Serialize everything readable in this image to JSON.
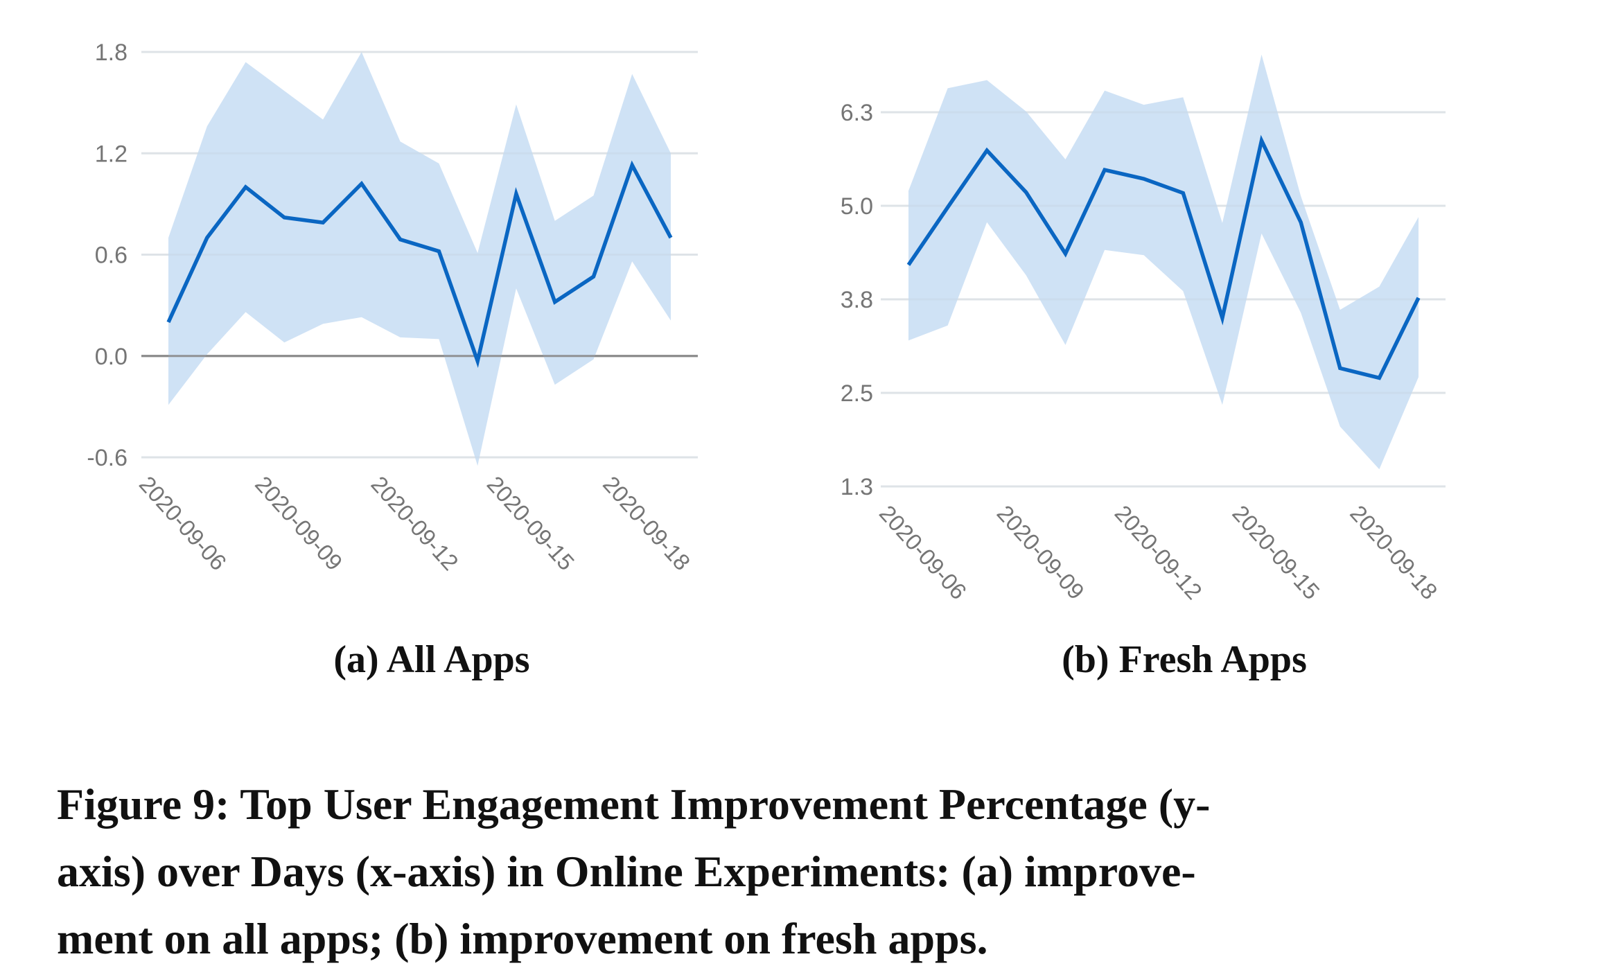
{
  "colors": {
    "line": "#0a66c2",
    "band": "#cce0f4",
    "grid": "#ebebeb",
    "zero_line": "#8a8a8a",
    "tick_text": "#757575"
  },
  "chart_data": [
    {
      "type": "line",
      "id": "a",
      "title": "(a) All Apps",
      "xlabel": "",
      "ylabel": "",
      "x": [
        "2020-09-06",
        "2020-09-07",
        "2020-09-08",
        "2020-09-09",
        "2020-09-10",
        "2020-09-11",
        "2020-09-12",
        "2020-09-13",
        "2020-09-14",
        "2020-09-15",
        "2020-09-16",
        "2020-09-17",
        "2020-09-18",
        "2020-09-19"
      ],
      "x_tick_labels": [
        "2020-09-06",
        "2020-09-09",
        "2020-09-12",
        "2020-09-15",
        "2020-09-18"
      ],
      "y_tick_labels": [
        "1.8",
        "1.2",
        "0.6",
        "0.0",
        "-0.6"
      ],
      "y_ticks": [
        1.8,
        1.2,
        0.6,
        0.0,
        -0.6
      ],
      "ylim": [
        -0.6,
        1.8
      ],
      "grid": true,
      "zero_line": true,
      "series": [
        {
          "name": "mean",
          "values": [
            0.2,
            0.7,
            1.0,
            0.82,
            0.79,
            1.02,
            0.69,
            0.62,
            -0.03,
            0.96,
            0.32,
            0.47,
            1.13,
            0.7
          ]
        },
        {
          "name": "upper",
          "values": [
            0.7,
            1.36,
            1.74,
            1.57,
            1.4,
            1.8,
            1.27,
            1.14,
            0.61,
            1.49,
            0.8,
            0.95,
            1.67,
            1.2
          ]
        },
        {
          "name": "lower",
          "values": [
            -0.29,
            0.01,
            0.26,
            0.08,
            0.19,
            0.23,
            0.11,
            0.1,
            -0.65,
            0.4,
            -0.17,
            -0.02,
            0.56,
            0.21
          ]
        }
      ]
    },
    {
      "type": "line",
      "id": "b",
      "title": "(b) Fresh Apps",
      "xlabel": "",
      "ylabel": "",
      "x": [
        "2020-09-06",
        "2020-09-07",
        "2020-09-08",
        "2020-09-09",
        "2020-09-10",
        "2020-09-11",
        "2020-09-12",
        "2020-09-13",
        "2020-09-14",
        "2020-09-15",
        "2020-09-16",
        "2020-09-17",
        "2020-09-18",
        "2020-09-19"
      ],
      "x_tick_labels": [
        "2020-09-06",
        "2020-09-09",
        "2020-09-12",
        "2020-09-15",
        "2020-09-18"
      ],
      "y_tick_labels": [
        "6.3",
        "5.0",
        "3.8",
        "2.5",
        "1.3"
      ],
      "y_ticks": [
        6.3,
        5.05,
        3.8,
        2.55,
        1.3
      ],
      "ylim": [
        1.3,
        6.3
      ],
      "grid": true,
      "zero_line": false,
      "series": [
        {
          "name": "mean",
          "values": [
            4.26,
            5.03,
            5.79,
            5.23,
            4.41,
            5.53,
            5.41,
            5.22,
            3.55,
            5.92,
            4.83,
            2.88,
            2.75,
            3.82
          ]
        },
        {
          "name": "upper",
          "values": [
            5.25,
            6.62,
            6.73,
            6.31,
            5.67,
            6.59,
            6.4,
            6.5,
            4.82,
            7.07,
            5.18,
            3.66,
            3.97,
            4.9
          ]
        },
        {
          "name": "lower",
          "values": [
            3.25,
            3.45,
            4.83,
            4.12,
            3.19,
            4.46,
            4.39,
            3.91,
            2.39,
            4.68,
            3.62,
            2.1,
            1.53,
            2.76
          ]
        }
      ]
    }
  ],
  "subcaptions": {
    "a": "(a) All Apps",
    "b": "(b) Fresh Apps"
  },
  "caption": {
    "lines": [
      "Figure 9: Top User Engagement Improvement Percentage (y-",
      "axis) over Days (x-axis) in Online Experiments: (a) improve-",
      "ment on all apps; (b) improvement on fresh apps."
    ]
  }
}
